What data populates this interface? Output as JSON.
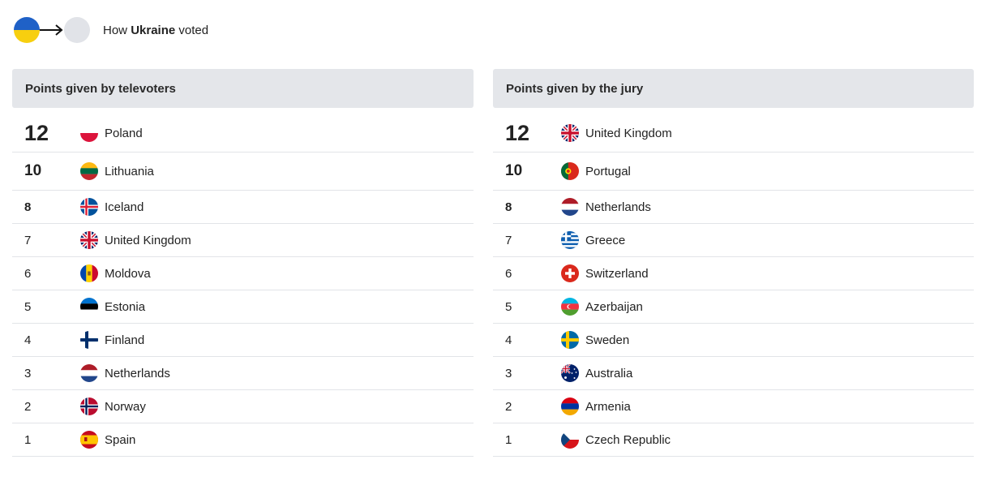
{
  "header": {
    "prefix": "How ",
    "country": "Ukraine",
    "suffix": " voted",
    "voter_flag": [
      "#1f61c7",
      "#f7cf0f"
    ]
  },
  "televoters": {
    "title": "Points given by televoters",
    "rows": [
      {
        "points": "12",
        "country": "Poland",
        "flag": "poland-flag-icon"
      },
      {
        "points": "10",
        "country": "Lithuania",
        "flag": "lithuania-flag-icon"
      },
      {
        "points": "8",
        "country": "Iceland",
        "flag": "iceland-flag-icon"
      },
      {
        "points": "7",
        "country": "United Kingdom",
        "flag": "united-kingdom-flag-icon"
      },
      {
        "points": "6",
        "country": "Moldova",
        "flag": "moldova-flag-icon"
      },
      {
        "points": "5",
        "country": "Estonia",
        "flag": "estonia-flag-icon"
      },
      {
        "points": "4",
        "country": "Finland",
        "flag": "finland-flag-icon"
      },
      {
        "points": "3",
        "country": "Netherlands",
        "flag": "netherlands-flag-icon"
      },
      {
        "points": "2",
        "country": "Norway",
        "flag": "norway-flag-icon"
      },
      {
        "points": "1",
        "country": "Spain",
        "flag": "spain-flag-icon"
      }
    ]
  },
  "jury": {
    "title": "Points given by the jury",
    "rows": [
      {
        "points": "12",
        "country": "United Kingdom",
        "flag": "united-kingdom-flag-icon"
      },
      {
        "points": "10",
        "country": "Portugal",
        "flag": "portugal-flag-icon"
      },
      {
        "points": "8",
        "country": "Netherlands",
        "flag": "netherlands-flag-icon"
      },
      {
        "points": "7",
        "country": "Greece",
        "flag": "greece-flag-icon"
      },
      {
        "points": "6",
        "country": "Switzerland",
        "flag": "switzerland-flag-icon"
      },
      {
        "points": "5",
        "country": "Azerbaijan",
        "flag": "azerbaijan-flag-icon"
      },
      {
        "points": "4",
        "country": "Sweden",
        "flag": "sweden-flag-icon"
      },
      {
        "points": "3",
        "country": "Australia",
        "flag": "australia-flag-icon"
      },
      {
        "points": "2",
        "country": "Armenia",
        "flag": "armenia-flag-icon"
      },
      {
        "points": "1",
        "country": "Czech Republic",
        "flag": "czech-republic-flag-icon"
      }
    ]
  }
}
